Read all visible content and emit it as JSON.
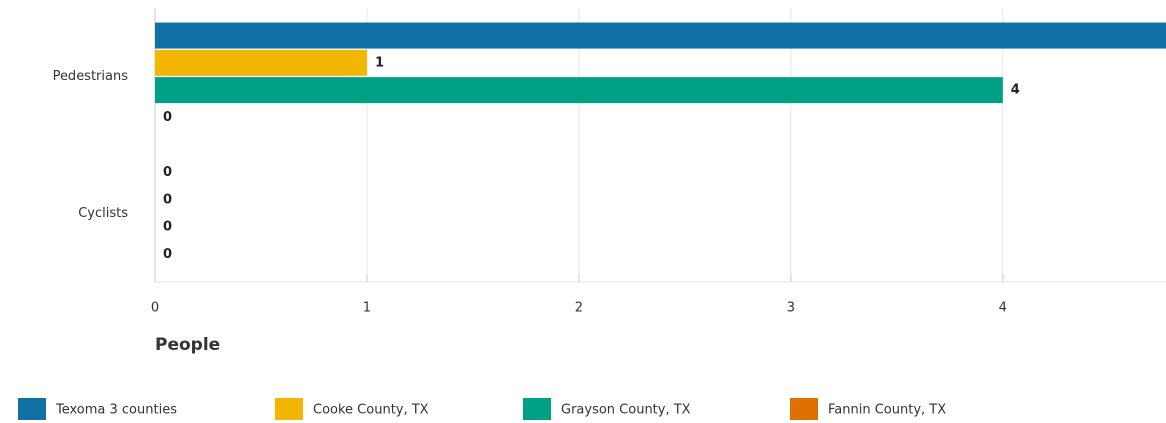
{
  "chart_data": {
    "type": "bar",
    "orientation": "horizontal",
    "categories": [
      "Pedestrians",
      "Cyclists"
    ],
    "series": [
      {
        "name": "Texoma 3 counties",
        "color": "#1170a4",
        "values": [
          5,
          0
        ]
      },
      {
        "name": "Cooke County, TX",
        "color": "#f2b705",
        "values": [
          1,
          0
        ]
      },
      {
        "name": "Grayson County, TX",
        "color": "#00a084",
        "values": [
          4,
          0
        ]
      },
      {
        "name": "Fannin County, TX",
        "color": "#e07000",
        "values": [
          0,
          0
        ]
      }
    ],
    "x_label": "People",
    "xlim": [
      0,
      4.77
    ],
    "xticks": [
      0,
      1,
      2,
      3,
      4
    ],
    "grid": true,
    "data_labels": true,
    "legend": "bottom"
  }
}
